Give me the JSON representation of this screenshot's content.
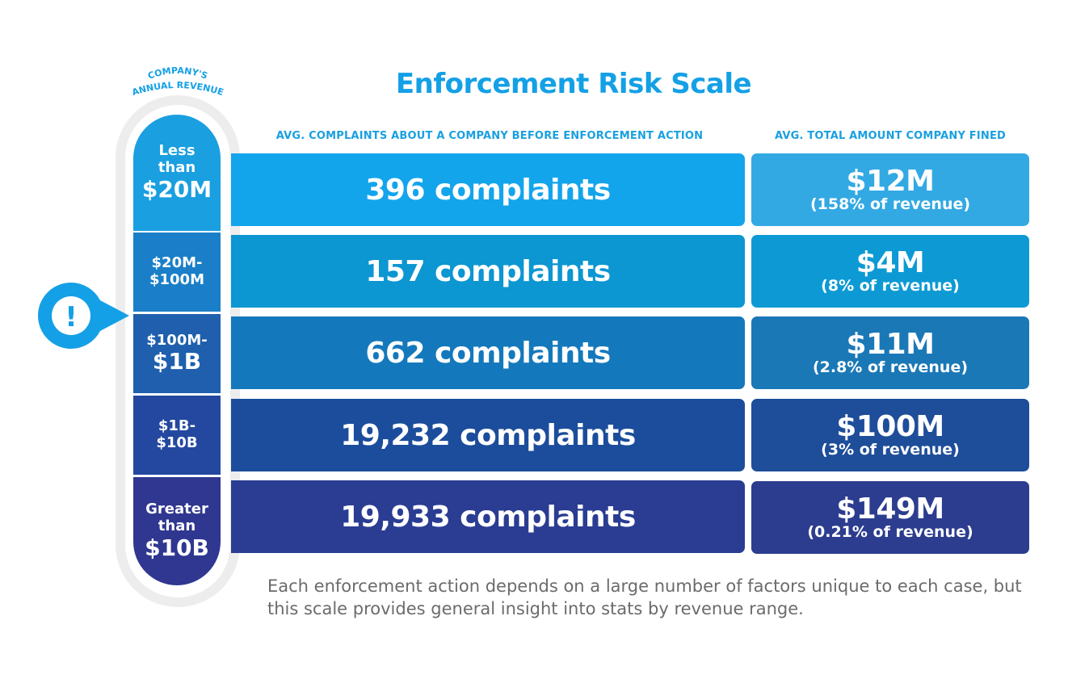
{
  "title": "Enforcement Risk Scale",
  "revenue_heading": {
    "line1": "COMPANY'S",
    "line2": "ANNUAL REVENUE"
  },
  "columns": {
    "complaints": "AVG. COMPLAINTS ABOUT A COMPANY BEFORE ENFORCEMENT ACTION",
    "fines": "AVG. TOTAL AMOUNT COMPANY FINED"
  },
  "marker_icon": "exclamation-pin-icon",
  "marker_symbol": "!",
  "rows": [
    {
      "rev_line1": "Less",
      "rev_line2": "than",
      "rev_line3": "$20M",
      "complaints": "396 complaints",
      "fine": "$12M",
      "pct": "(158% of revenue)"
    },
    {
      "rev_line1": "$20M-",
      "rev_line2": "$100M",
      "complaints": "157 complaints",
      "fine": "$4M",
      "pct": "(8% of revenue)"
    },
    {
      "rev_line1": "$100M-",
      "rev_line2": "$1B",
      "complaints": "662 complaints",
      "fine": "$11M",
      "pct": "(2.8% of revenue)"
    },
    {
      "rev_line1": "$1B-",
      "rev_line2": "$10B",
      "complaints": "19,232 complaints",
      "fine": "$100M",
      "pct": "(3% of revenue)"
    },
    {
      "rev_line1": "Greater",
      "rev_line2": "than",
      "rev_line3": "$10B",
      "complaints": "19,933 complaints",
      "fine": "$149M",
      "pct": "(0.21% of revenue)"
    }
  ],
  "colors": {
    "title": "#14a0e6",
    "rev_cells": [
      "#1a9fe0",
      "#1a7fc8",
      "#1f5fae",
      "#2448a0",
      "#2f3790"
    ],
    "bars": [
      "#13a5ec",
      "#0c96d2",
      "#1479bc",
      "#1c4d9c",
      "#2a3d93"
    ],
    "fines": [
      "#33a9e3",
      "#0d9ad4",
      "#1b78b6",
      "#1e4d9a",
      "#2c3d8f"
    ]
  },
  "note": "Each enforcement action depends on a large number of factors unique to each case, but this scale provides general insight into stats by revenue range.",
  "chart_data": {
    "type": "table",
    "title": "Enforcement Risk Scale",
    "row_header": "COMPANY'S ANNUAL REVENUE",
    "columns": [
      "AVG. COMPLAINTS ABOUT A COMPANY BEFORE ENFORCEMENT ACTION",
      "AVG. TOTAL AMOUNT COMPANY FINED"
    ],
    "categories": [
      "Less than $20M",
      "$20M-$100M",
      "$100M-$1B",
      "$1B-$10B",
      "Greater than $10B"
    ],
    "complaints": [
      396,
      157,
      662,
      19232,
      19933
    ],
    "fines_musd": [
      12,
      4,
      11,
      100,
      149
    ],
    "fine_pct_of_revenue": [
      158,
      8,
      2.8,
      3,
      0.21
    ]
  }
}
